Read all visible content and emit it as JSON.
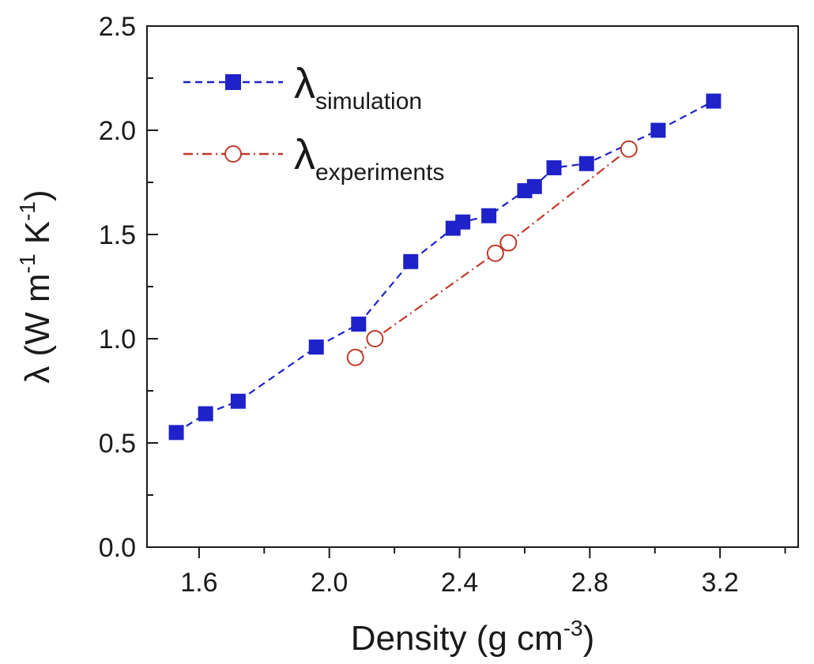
{
  "chart_data": {
    "type": "line",
    "title": "",
    "xlabel": "Density (g cm",
    "xlabel_sup": "-3",
    "xlabel_end": ")",
    "ylabel": "λ (W m",
    "ylabel_sup1": "-1",
    "ylabel_mid": " K",
    "ylabel_sup2": "-1",
    "ylabel_end": ")",
    "xlim": [
      1.44,
      3.44
    ],
    "ylim": [
      0.0,
      2.5
    ],
    "xticks": [
      1.6,
      2.0,
      2.4,
      2.8,
      3.2
    ],
    "xtick_labels": [
      "1.6",
      "2.0",
      "2.4",
      "2.8",
      "3.2"
    ],
    "xminor": [
      1.8,
      2.2,
      2.6,
      3.0,
      3.4
    ],
    "yticks": [
      0.0,
      0.5,
      1.0,
      1.5,
      2.0,
      2.5
    ],
    "ytick_labels": [
      "0.0",
      "0.5",
      "1.0",
      "1.5",
      "2.0",
      "2.5"
    ],
    "yminor": [
      0.25,
      0.75,
      1.25,
      1.75,
      2.25
    ],
    "grid": false,
    "legend_position": "top-left",
    "series": [
      {
        "name": "simulation",
        "legend_symbol": "λ",
        "legend_sub": "simulation",
        "color": "#1f22c8",
        "marker": "square-filled",
        "line": "dashed",
        "x": [
          1.53,
          1.62,
          1.72,
          1.96,
          2.09,
          2.25,
          2.38,
          2.41,
          2.49,
          2.6,
          2.63,
          2.69,
          2.79,
          3.01,
          3.18
        ],
        "y": [
          0.55,
          0.64,
          0.7,
          0.96,
          1.07,
          1.37,
          1.53,
          1.56,
          1.59,
          1.71,
          1.73,
          1.82,
          1.84,
          2.0,
          2.14
        ]
      },
      {
        "name": "experiments",
        "legend_symbol": "λ",
        "legend_sub": "experiments",
        "color": "#c0392b",
        "marker": "circle-open",
        "line": "dash-dot",
        "x": [
          2.08,
          2.14,
          2.51,
          2.55,
          2.92
        ],
        "y": [
          0.91,
          1.0,
          1.41,
          1.46,
          1.91
        ]
      }
    ]
  }
}
